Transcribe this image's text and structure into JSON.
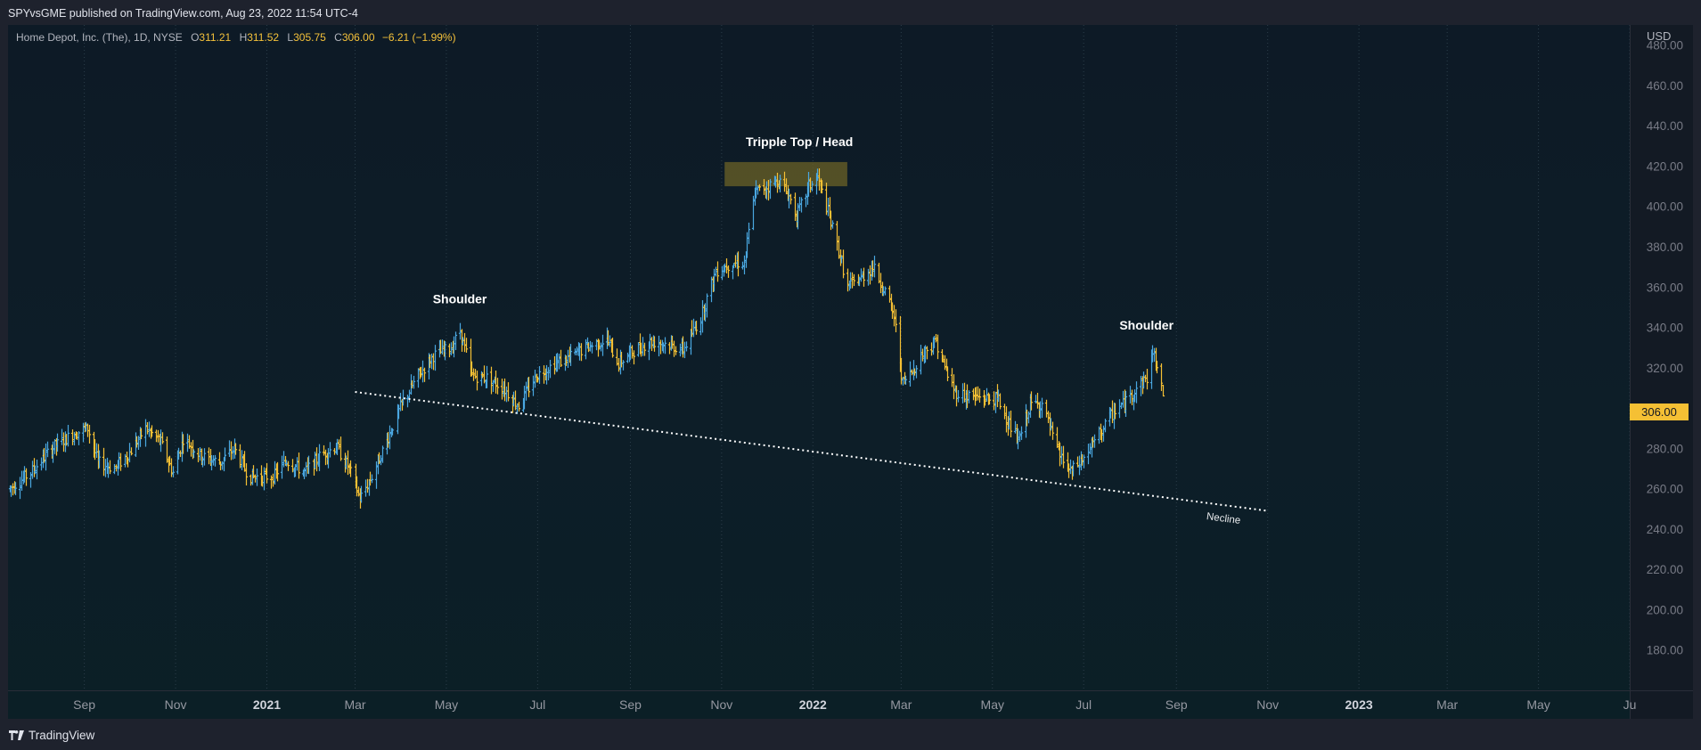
{
  "header": {
    "publisher_text": "SPYvsGME published on TradingView.com, Aug 23, 2022 11:54 UTC-4"
  },
  "legend": {
    "symbol": "Home Depot, Inc. (The), 1D, NYSE",
    "open_label": "O",
    "open": "311.21",
    "high_label": "H",
    "high": "311.52",
    "low_label": "L",
    "low": "305.75",
    "close_label": "C",
    "close": "306.00",
    "change": "−6.21 (−1.99%)"
  },
  "footer": {
    "brand": "TradingView"
  },
  "colors": {
    "up": "#4aa7e0",
    "down": "#f5c034",
    "background": "#0d1a26",
    "highlight": "#6b6227"
  },
  "chart_data": {
    "type": "ohlc",
    "currency_label": "USD",
    "last_price": "306.00",
    "ylim": [
      160,
      490
    ],
    "y_ticks": [
      "180.00",
      "200.00",
      "220.00",
      "240.00",
      "260.00",
      "280.00",
      "300.00",
      "320.00",
      "340.00",
      "360.00",
      "380.00",
      "400.00",
      "420.00",
      "440.00",
      "460.00",
      "480.00"
    ],
    "y_tick_values": [
      180,
      200,
      220,
      240,
      260,
      280,
      300,
      320,
      340,
      360,
      380,
      400,
      420,
      440,
      460,
      480
    ],
    "x_range": [
      "2020-07-12",
      "2023-07-01"
    ],
    "x_ticks": [
      {
        "date": "2020-09-01",
        "label": "Sep",
        "bold": false
      },
      {
        "date": "2020-11-01",
        "label": "Nov",
        "bold": false
      },
      {
        "date": "2021-01-01",
        "label": "2021",
        "bold": true
      },
      {
        "date": "2021-03-01",
        "label": "Mar",
        "bold": false
      },
      {
        "date": "2021-05-01",
        "label": "May",
        "bold": false
      },
      {
        "date": "2021-07-01",
        "label": "Jul",
        "bold": false
      },
      {
        "date": "2021-09-01",
        "label": "Sep",
        "bold": false
      },
      {
        "date": "2021-11-01",
        "label": "Nov",
        "bold": false
      },
      {
        "date": "2022-01-01",
        "label": "2022",
        "bold": true
      },
      {
        "date": "2022-03-01",
        "label": "Mar",
        "bold": false
      },
      {
        "date": "2022-05-01",
        "label": "May",
        "bold": false
      },
      {
        "date": "2022-07-01",
        "label": "Jul",
        "bold": false
      },
      {
        "date": "2022-09-01",
        "label": "Sep",
        "bold": false
      },
      {
        "date": "2022-11-01",
        "label": "Nov",
        "bold": false
      },
      {
        "date": "2023-01-01",
        "label": "2023",
        "bold": true
      },
      {
        "date": "2023-03-01",
        "label": "Mar",
        "bold": false
      },
      {
        "date": "2023-05-01",
        "label": "May",
        "bold": false
      },
      {
        "date": "2023-07-01",
        "label": "Ju",
        "bold": false
      }
    ],
    "series": [
      {
        "price_anchors": [
          [
            "2020-07-13",
            260
          ],
          [
            "2020-07-27",
            268
          ],
          [
            "2020-08-10",
            280
          ],
          [
            "2020-08-24",
            287
          ],
          [
            "2020-09-03",
            290
          ],
          [
            "2020-09-10",
            273
          ],
          [
            "2020-09-21",
            270
          ],
          [
            "2020-10-01",
            278
          ],
          [
            "2020-10-12",
            290
          ],
          [
            "2020-10-22",
            283
          ],
          [
            "2020-10-30",
            268
          ],
          [
            "2020-11-06",
            285
          ],
          [
            "2020-11-18",
            276
          ],
          [
            "2020-12-01",
            273
          ],
          [
            "2020-12-10",
            280
          ],
          [
            "2020-12-20",
            266
          ],
          [
            "2021-01-05",
            266
          ],
          [
            "2021-01-14",
            274
          ],
          [
            "2021-01-26",
            268
          ],
          [
            "2021-02-05",
            276
          ],
          [
            "2021-02-16",
            281
          ],
          [
            "2021-02-25",
            270
          ],
          [
            "2021-03-04",
            255
          ],
          [
            "2021-03-12",
            266
          ],
          [
            "2021-03-22",
            284
          ],
          [
            "2021-04-01",
            302
          ],
          [
            "2021-04-12",
            316
          ],
          [
            "2021-04-22",
            326
          ],
          [
            "2021-05-04",
            330
          ],
          [
            "2021-05-10",
            338
          ],
          [
            "2021-05-18",
            316
          ],
          [
            "2021-05-28",
            315
          ],
          [
            "2021-06-08",
            310
          ],
          [
            "2021-06-18",
            301
          ],
          [
            "2021-06-30",
            316
          ],
          [
            "2021-07-12",
            322
          ],
          [
            "2021-07-22",
            325
          ],
          [
            "2021-08-02",
            330
          ],
          [
            "2021-08-16",
            334
          ],
          [
            "2021-08-24",
            322
          ],
          [
            "2021-09-02",
            328
          ],
          [
            "2021-09-14",
            333
          ],
          [
            "2021-09-24",
            332
          ],
          [
            "2021-10-06",
            329
          ],
          [
            "2021-10-18",
            345
          ],
          [
            "2021-10-28",
            368
          ],
          [
            "2021-11-08",
            372
          ],
          [
            "2021-11-16",
            372
          ],
          [
            "2021-11-23",
            407
          ],
          [
            "2021-12-02",
            410
          ],
          [
            "2021-12-09",
            413
          ],
          [
            "2021-12-16",
            405
          ],
          [
            "2021-12-21",
            395
          ],
          [
            "2021-12-29",
            410
          ],
          [
            "2022-01-04",
            414
          ],
          [
            "2022-01-10",
            400
          ],
          [
            "2022-01-18",
            378
          ],
          [
            "2022-01-24",
            360
          ],
          [
            "2022-02-03",
            365
          ],
          [
            "2022-02-10",
            370
          ],
          [
            "2022-02-18",
            358
          ],
          [
            "2022-02-24",
            345
          ],
          [
            "2022-03-02",
            312
          ],
          [
            "2022-03-08",
            318
          ],
          [
            "2022-03-16",
            328
          ],
          [
            "2022-03-24",
            333
          ],
          [
            "2022-03-30",
            320
          ],
          [
            "2022-04-06",
            308
          ],
          [
            "2022-04-14",
            306
          ],
          [
            "2022-04-26",
            305
          ],
          [
            "2022-05-05",
            304
          ],
          [
            "2022-05-12",
            292
          ],
          [
            "2022-05-18",
            283
          ],
          [
            "2022-05-26",
            302
          ],
          [
            "2022-06-03",
            302
          ],
          [
            "2022-06-13",
            279
          ],
          [
            "2022-06-22",
            268
          ],
          [
            "2022-07-01",
            275
          ],
          [
            "2022-07-11",
            287
          ],
          [
            "2022-07-21",
            298
          ],
          [
            "2022-07-29",
            303
          ],
          [
            "2022-08-05",
            310
          ],
          [
            "2022-08-12",
            315
          ],
          [
            "2022-08-16",
            328
          ],
          [
            "2022-08-19",
            320
          ],
          [
            "2022-08-23",
            306
          ]
        ]
      }
    ],
    "neckline": {
      "start": [
        "2021-03-01",
        308
      ],
      "end": [
        "2022-11-01",
        249
      ],
      "label": "Necline"
    },
    "highlight_zone": {
      "x_range": [
        "2021-11-03",
        "2022-01-24"
      ],
      "y_range": [
        410,
        422
      ]
    },
    "annotations": [
      {
        "text": "Shoulder",
        "date": "2021-05-10",
        "price": 352
      },
      {
        "text": "Tripple Top / Head",
        "date": "2021-12-23",
        "price": 430
      },
      {
        "text": "Shoulder",
        "date": "2022-08-12",
        "price": 339
      }
    ]
  }
}
